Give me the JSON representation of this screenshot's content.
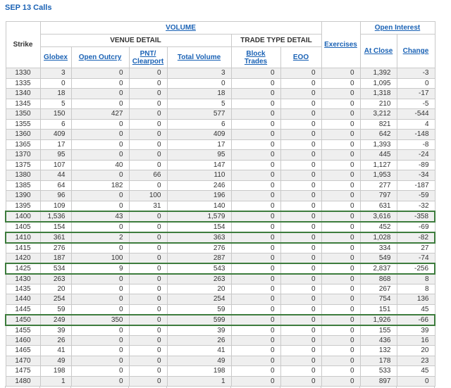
{
  "page": {
    "title": "SEP 13 Calls"
  },
  "colors": {
    "link_blue": "#1a62b5",
    "text": "#333333",
    "row_alt_bg": "#efefef",
    "grid_border": "#c9c9c9",
    "highlight_green": "#3d7c3d"
  },
  "table": {
    "header": {
      "strike": "Strike",
      "volume": "VOLUME",
      "venue_detail": "VENUE DETAIL",
      "trade_type_detail": "TRADE TYPE DETAIL",
      "exercises": "Exercises",
      "open_interest": "Open Interest",
      "globex": "Globex",
      "open_outcry": "Open Outcry",
      "pnt_clearport": "PNT/\nClearport",
      "total_volume": "Total Volume",
      "block_trades": "Block\nTrades",
      "eoo": "EOO",
      "at_close": "At Close",
      "change": "Change"
    },
    "columns": [
      "strike",
      "globex",
      "open-outcry",
      "pnt-clearport",
      "total-volume",
      "block-trades",
      "eoo",
      "exercises",
      "at-close",
      "change"
    ],
    "highlighted_strikes": [
      "1400",
      "1410",
      "1425",
      "1450"
    ],
    "rows": [
      [
        "1330",
        "3",
        "0",
        "0",
        "3",
        "0",
        "0",
        "0",
        "1,392",
        "-3"
      ],
      [
        "1335",
        "0",
        "0",
        "0",
        "0",
        "0",
        "0",
        "0",
        "1,095",
        "0"
      ],
      [
        "1340",
        "18",
        "0",
        "0",
        "18",
        "0",
        "0",
        "0",
        "1,318",
        "-17"
      ],
      [
        "1345",
        "5",
        "0",
        "0",
        "5",
        "0",
        "0",
        "0",
        "210",
        "-5"
      ],
      [
        "1350",
        "150",
        "427",
        "0",
        "577",
        "0",
        "0",
        "0",
        "3,212",
        "-544"
      ],
      [
        "1355",
        "6",
        "0",
        "0",
        "6",
        "0",
        "0",
        "0",
        "821",
        "4"
      ],
      [
        "1360",
        "409",
        "0",
        "0",
        "409",
        "0",
        "0",
        "0",
        "642",
        "-148"
      ],
      [
        "1365",
        "17",
        "0",
        "0",
        "17",
        "0",
        "0",
        "0",
        "1,393",
        "-8"
      ],
      [
        "1370",
        "95",
        "0",
        "0",
        "95",
        "0",
        "0",
        "0",
        "445",
        "-24"
      ],
      [
        "1375",
        "107",
        "40",
        "0",
        "147",
        "0",
        "0",
        "0",
        "1,127",
        "-89"
      ],
      [
        "1380",
        "44",
        "0",
        "66",
        "110",
        "0",
        "0",
        "0",
        "1,953",
        "-34"
      ],
      [
        "1385",
        "64",
        "182",
        "0",
        "246",
        "0",
        "0",
        "0",
        "277",
        "-187"
      ],
      [
        "1390",
        "96",
        "0",
        "100",
        "196",
        "0",
        "0",
        "0",
        "797",
        "-59"
      ],
      [
        "1395",
        "109",
        "0",
        "31",
        "140",
        "0",
        "0",
        "0",
        "631",
        "-32"
      ],
      [
        "1400",
        "1,536",
        "43",
        "0",
        "1,579",
        "0",
        "0",
        "0",
        "3,616",
        "-358"
      ],
      [
        "1405",
        "154",
        "0",
        "0",
        "154",
        "0",
        "0",
        "0",
        "452",
        "-69"
      ],
      [
        "1410",
        "361",
        "2",
        "0",
        "363",
        "0",
        "0",
        "0",
        "1,028",
        "-82"
      ],
      [
        "1415",
        "276",
        "0",
        "0",
        "276",
        "0",
        "0",
        "0",
        "334",
        "27"
      ],
      [
        "1420",
        "187",
        "100",
        "0",
        "287",
        "0",
        "0",
        "0",
        "549",
        "-74"
      ],
      [
        "1425",
        "534",
        "9",
        "0",
        "543",
        "0",
        "0",
        "0",
        "2,837",
        "-256"
      ],
      [
        "1430",
        "263",
        "0",
        "0",
        "263",
        "0",
        "0",
        "0",
        "868",
        "8"
      ],
      [
        "1435",
        "20",
        "0",
        "0",
        "20",
        "0",
        "0",
        "0",
        "267",
        "8"
      ],
      [
        "1440",
        "254",
        "0",
        "0",
        "254",
        "0",
        "0",
        "0",
        "754",
        "136"
      ],
      [
        "1445",
        "59",
        "0",
        "0",
        "59",
        "0",
        "0",
        "0",
        "151",
        "45"
      ],
      [
        "1450",
        "249",
        "350",
        "0",
        "599",
        "0",
        "0",
        "0",
        "1,926",
        "-66"
      ],
      [
        "1455",
        "39",
        "0",
        "0",
        "39",
        "0",
        "0",
        "0",
        "155",
        "39"
      ],
      [
        "1460",
        "26",
        "0",
        "0",
        "26",
        "0",
        "0",
        "0",
        "436",
        "16"
      ],
      [
        "1465",
        "41",
        "0",
        "0",
        "41",
        "0",
        "0",
        "0",
        "132",
        "20"
      ],
      [
        "1470",
        "49",
        "0",
        "0",
        "49",
        "0",
        "0",
        "0",
        "178",
        "23"
      ],
      [
        "1475",
        "198",
        "0",
        "0",
        "198",
        "0",
        "0",
        "0",
        "533",
        "45"
      ],
      [
        "1480",
        "1",
        "0",
        "0",
        "1",
        "0",
        "0",
        "0",
        "897",
        "0"
      ]
    ]
  }
}
